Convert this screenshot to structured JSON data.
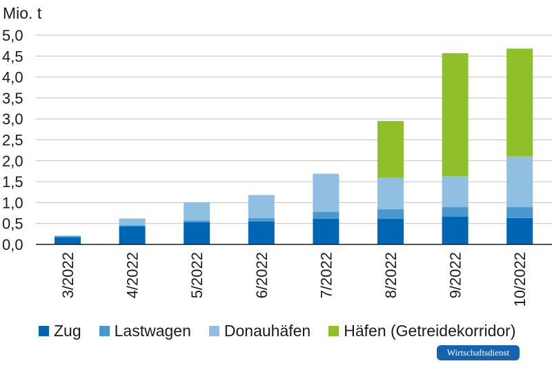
{
  "chart_data": {
    "type": "bar",
    "stacked": true,
    "unit_label": "Mio. t",
    "categories": [
      "3/2022",
      "4/2022",
      "5/2022",
      "6/2022",
      "7/2022",
      "8/2022",
      "9/2022",
      "10/2022"
    ],
    "series": [
      {
        "name": "Zug",
        "color": "#0066b3",
        "values": [
          0.17,
          0.43,
          0.53,
          0.55,
          0.61,
          0.61,
          0.66,
          0.63
        ]
      },
      {
        "name": "Lastwagen",
        "color": "#4b97cf",
        "values": [
          0.03,
          0.03,
          0.04,
          0.08,
          0.17,
          0.23,
          0.23,
          0.26
        ]
      },
      {
        "name": "Donauhäfen",
        "color": "#90bfe2",
        "values": [
          0.01,
          0.16,
          0.44,
          0.55,
          0.91,
          0.75,
          0.74,
          1.21
        ]
      },
      {
        "name": "Häfen (Getreidekorridor)",
        "color": "#8fc02a",
        "values": [
          0,
          0,
          0,
          0,
          0,
          1.36,
          2.94,
          2.58
        ]
      }
    ],
    "ylim": [
      0,
      5.0
    ],
    "yticks": [
      0.0,
      0.5,
      1.0,
      1.5,
      2.0,
      2.5,
      3.0,
      3.5,
      4.0,
      4.5,
      5.0
    ],
    "ytick_labels": [
      "0,0",
      "0,5",
      "1,0",
      "1,5",
      "2,0",
      "2,5",
      "3,0",
      "3,5",
      "4,0",
      "4,5",
      "5,0"
    ],
    "grid": true,
    "legend_position": "bottom"
  },
  "branding": {
    "publisher": "Wirtschaftsdienst"
  }
}
